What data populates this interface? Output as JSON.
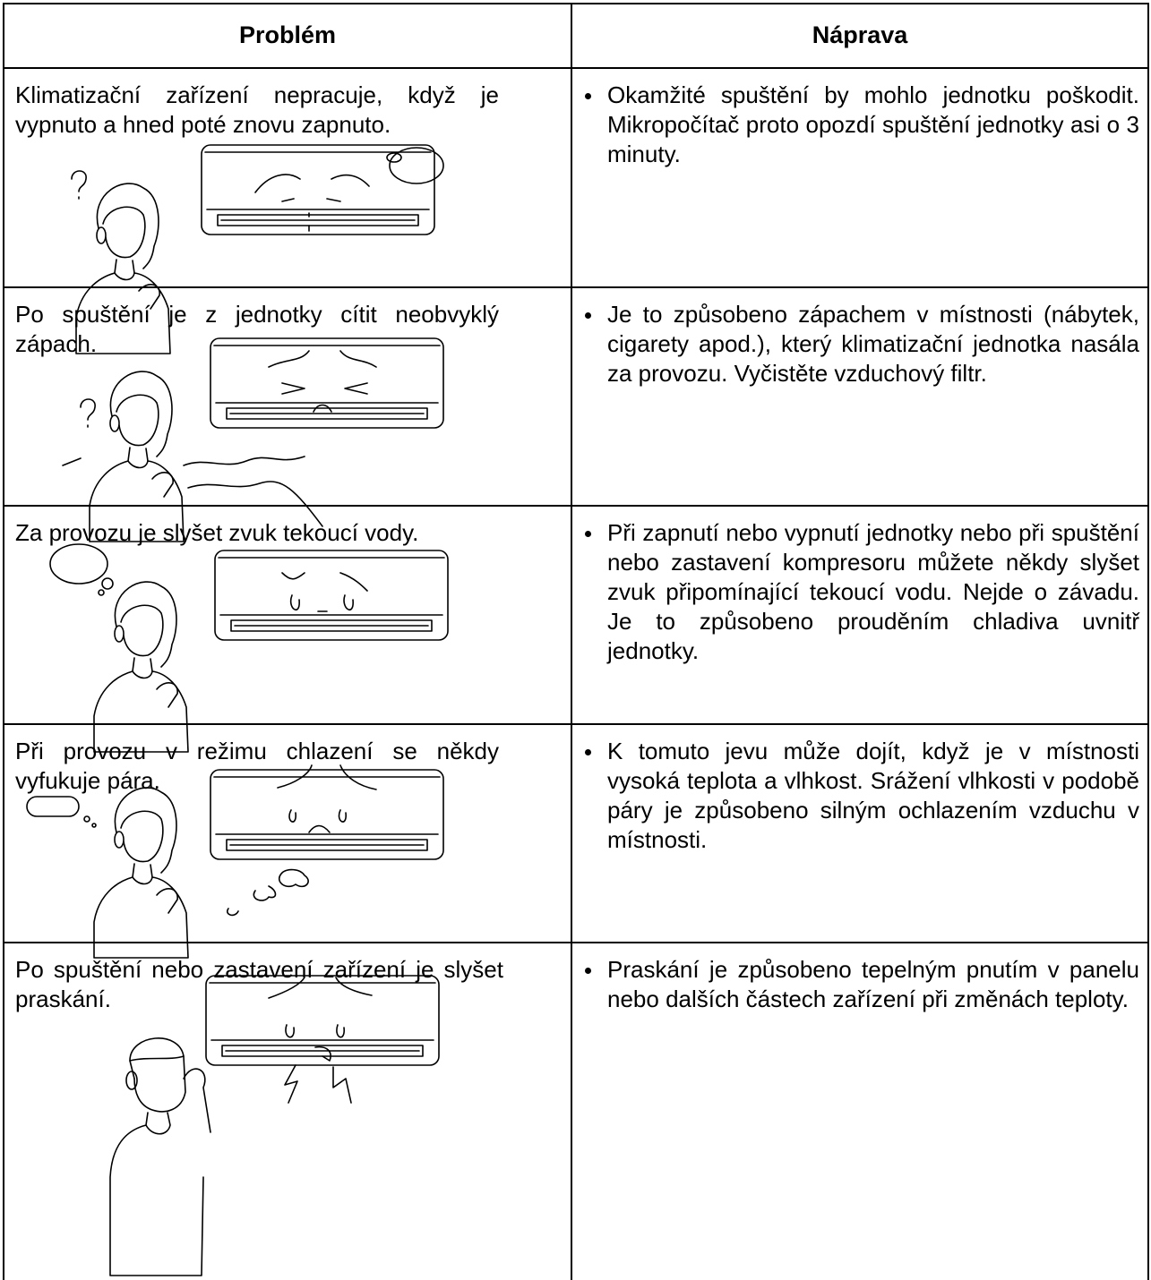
{
  "table": {
    "header": [
      "Problém",
      "Náprava"
    ],
    "rows": [
      [
        "Klimatizační zařízení nepracuje, když je vypnuto a hned poté znovu zapnuto.",
        "Okamžité spuštění by mohlo jednotku poškodit. Mikropočítač proto opozdí spuštění jednotky asi o 3 minuty."
      ],
      [
        "Po spuštění je z jednotky cítit neobvyklý zápach.",
        "Je to způsobeno zápachem v místnosti (nábytek, cigarety apod.), který klimatizační jednotka nasála za provozu. Vyčistěte vzduchový filtr."
      ],
      [
        "Za provozu je slyšet zvuk tekoucí vody.",
        "Při zapnutí nebo vypnutí jednotky nebo při spuštění nebo zastavení kompresoru můžete někdy slyšet zvuk připomínající tekoucí vodu. Nejde o závadu. Je to způsobeno prouděním chladiva uvnitř jednotky."
      ],
      [
        "Při provozu v režimu chlazení se někdy vyfukuje pára.",
        "K tomuto jevu může dojít, když je v místnosti vysoká teplota a vlhkost. Srážení vlhkosti v podobě páry je způsobeno silným ochlazením vzduchu v místnosti."
      ],
      [
        "Po spuštění nebo zastavení zařízení je slyšet praskání.",
        "Praskání je způsobeno tepelným pnutím v panelu nebo dalších částech zařízení při změnách teploty."
      ]
    ]
  }
}
